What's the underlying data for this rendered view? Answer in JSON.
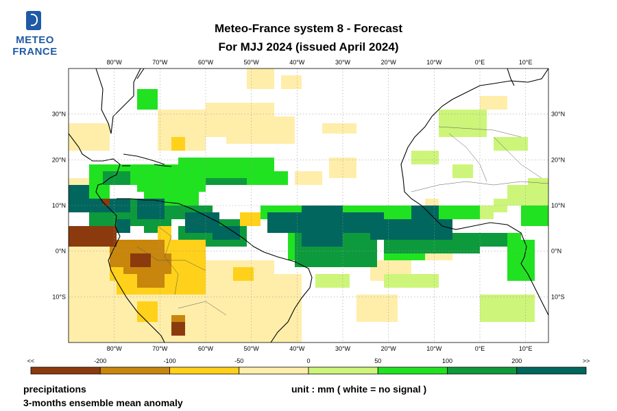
{
  "logo": {
    "line1": "METEO",
    "line2": "FRANCE",
    "icon": "meteo-france-logo-icon"
  },
  "title": {
    "line1": "Meteo-France system 8  -  Forecast",
    "line2": "For MJJ 2024      (issued April 2024)"
  },
  "map": {
    "lon_range": [
      -90,
      15
    ],
    "lat_range": [
      -20,
      40
    ],
    "lon_ticks": [
      "80°W",
      "70°W",
      "60°W",
      "50°W",
      "40°W",
      "30°W",
      "20°W",
      "10°W",
      "0°E",
      "10°E"
    ],
    "lat_ticks": [
      "30°N",
      "20°N",
      "10°N",
      "0°N",
      "10°S"
    ],
    "grid": "dotted"
  },
  "legend": {
    "edges": [
      "<<",
      "-200",
      "-100",
      "-50",
      "0",
      "50",
      "100",
      "200",
      ">>"
    ],
    "colors": [
      "#8b3a0e",
      "#c8860c",
      "#ffd11a",
      "#ffeeaa",
      "#cdf57a",
      "#21e221",
      "#0d9a3c",
      "#00665e"
    ]
  },
  "footer": {
    "left1": "precipitations",
    "left2": "3-months ensemble mean anomaly",
    "unit": "unit : mm  ( white = no signal )"
  }
}
